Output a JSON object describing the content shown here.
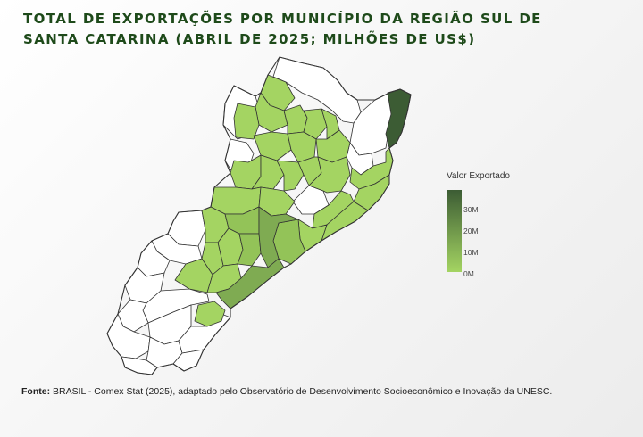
{
  "title": "TOTAL DE EXPORTAÇÕES POR MUNICÍPIO DA REGIÃO SUL DE SANTA CATARINA (ABRIL DE 2025; MILHÕES DE US$)",
  "legend": {
    "title": "Valor Exportado",
    "ticks": [
      "30M",
      "20M",
      "10M",
      "0M"
    ],
    "color_low": "#a4d462",
    "color_high": "#3c5c34"
  },
  "source": {
    "label": "Fonte:",
    "text": "BRASIL - Comex Stat (2025), adaptado pelo Observatório de Desenvolvimento Socioeconômico e Inovação da UNESC."
  },
  "colors": {
    "no_data": "#ffffff",
    "level_low": "#a4d462",
    "level_mid_low": "#93c358",
    "level_mid": "#7fab52",
    "level_high": "#3c5c34",
    "title": "#1e4a1a"
  }
}
